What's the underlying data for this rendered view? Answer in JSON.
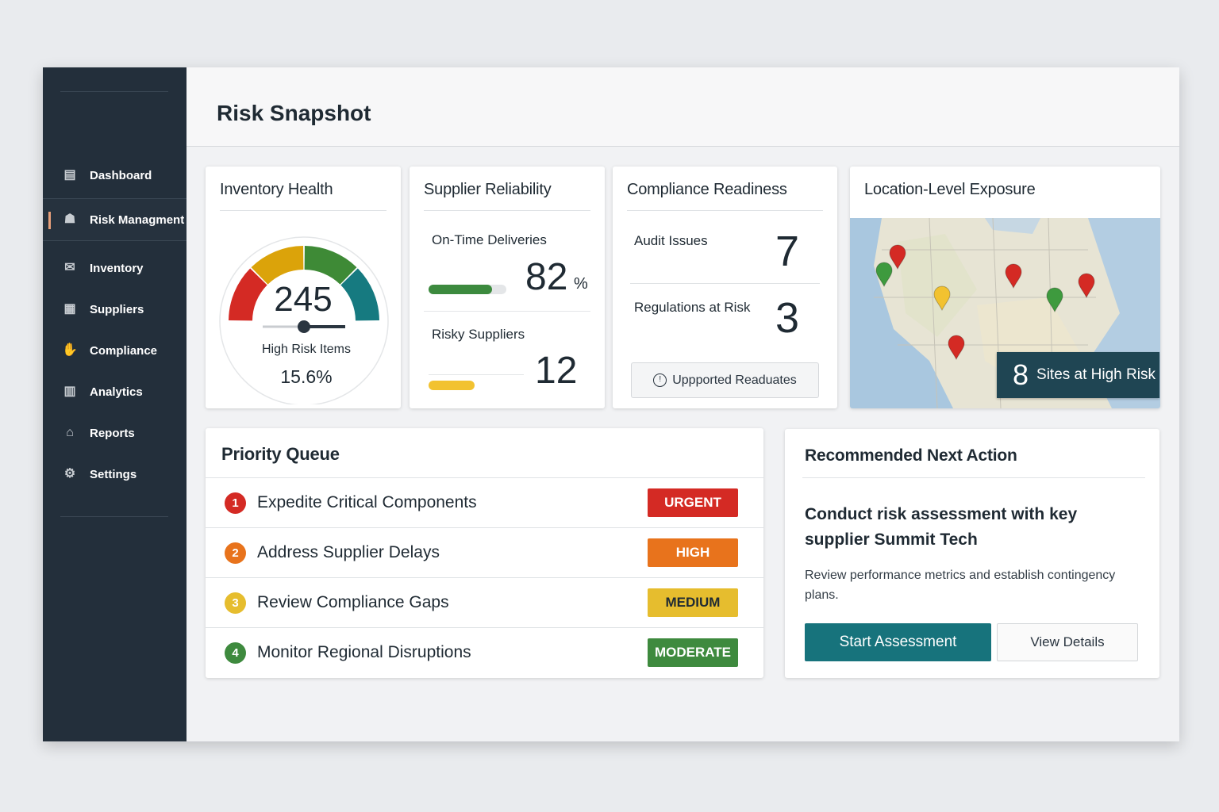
{
  "sidebar": {
    "items": [
      {
        "label": "Dashboard",
        "icon": "dashboard-icon"
      },
      {
        "label": "Risk Managment",
        "icon": "people-icon",
        "active": true
      },
      {
        "label": "Inventory",
        "icon": "envelope-icon"
      },
      {
        "label": "Suppliers",
        "icon": "store-icon"
      },
      {
        "label": "Compliance",
        "icon": "handshake-icon"
      },
      {
        "label": "Analytics",
        "icon": "bars-icon"
      },
      {
        "label": "Reports",
        "icon": "home-icon"
      },
      {
        "label": "Settings",
        "icon": "gear-icon"
      }
    ]
  },
  "header": {
    "title": "Risk Snapshot"
  },
  "inventory": {
    "title": "Inventory Health",
    "value": "245",
    "label": "High Risk Items",
    "percent": "15.6%",
    "gauge_colors": [
      "#d42a24",
      "#dba30a",
      "#3e8a36",
      "#167a80"
    ]
  },
  "supplier": {
    "title": "Supplier Reliability",
    "ontime_label": "On-Time Deliveries",
    "ontime_value": "82",
    "ontime_unit": "%",
    "ontime_progress": 82,
    "risky_label": "Risky Suppliers",
    "risky_value": "12",
    "colors": {
      "ontime": "#3c8a3e",
      "risky": "#f2c230"
    }
  },
  "compliance": {
    "title": "Compliance Readiness",
    "audit_label": "Audit Issues",
    "audit_value": "7",
    "reg_label": "Regulations at Risk",
    "reg_value": "3",
    "button": "Uppported Readuates"
  },
  "location": {
    "title": "Location-Level Exposure",
    "count": "8",
    "label": "Sites at High Risk"
  },
  "priority": {
    "title": "Priority Queue",
    "items": [
      {
        "num": "1",
        "label": "Expedite Critical Components",
        "badge": "URGENT",
        "color": "#d42a24"
      },
      {
        "num": "2",
        "label": "Address Supplier Delays",
        "badge": "HIGH",
        "color": "#e8731c"
      },
      {
        "num": "3",
        "label": "Review Compliance Gaps",
        "badge": "MEDIUM",
        "color": "#e6bd2e"
      },
      {
        "num": "4",
        "label": "Monitor Regional Disruptions",
        "badge": "MODERATE",
        "color": "#3e8a3e"
      }
    ]
  },
  "recommend": {
    "title": "Recommended Next Action",
    "headline": "Conduct risk assessment with key supplier Summit Tech",
    "body": "Review performance metrics and establish contingency plans.",
    "primary": "Start Assessment",
    "secondary": "View Details",
    "accent": "#17737c"
  }
}
